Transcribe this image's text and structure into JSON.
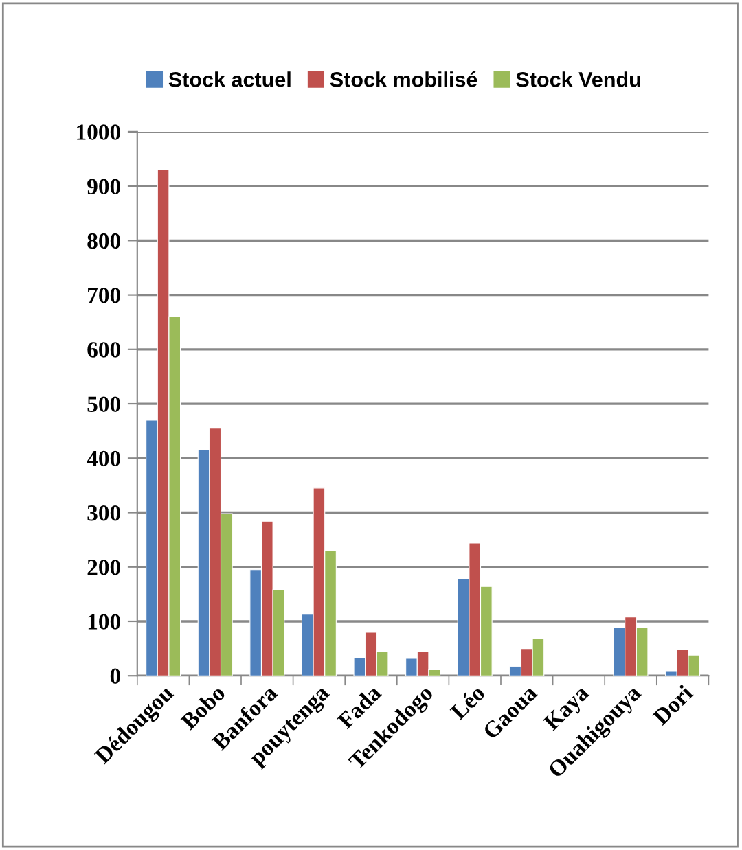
{
  "chart_data": {
    "type": "bar",
    "categories": [
      "Dédougou",
      "Bobo",
      "Banfora",
      "pouytenga",
      "Fada",
      "Tenkodogo",
      "Léo",
      "Gaoua",
      "Kaya",
      "Ouahigouya",
      "Dori"
    ],
    "series": [
      {
        "name": "Stock actuel",
        "color": "#4f81bd",
        "values": [
          470,
          415,
          195,
          113,
          33,
          32,
          178,
          17,
          null,
          88,
          8
        ]
      },
      {
        "name": "Stock mobilisé",
        "color": "#c0504d",
        "values": [
          930,
          455,
          284,
          345,
          80,
          45,
          244,
          50,
          null,
          108,
          48
        ]
      },
      {
        "name": "Stock Vendu",
        "color": "#9bbb59",
        "values": [
          660,
          298,
          158,
          230,
          45,
          11,
          164,
          68,
          null,
          88,
          38
        ]
      }
    ],
    "ylim": [
      0,
      1000
    ],
    "yticks": [
      0,
      100,
      200,
      300,
      400,
      500,
      600,
      700,
      800,
      900,
      1000
    ],
    "grid": "y",
    "legend": "top"
  }
}
